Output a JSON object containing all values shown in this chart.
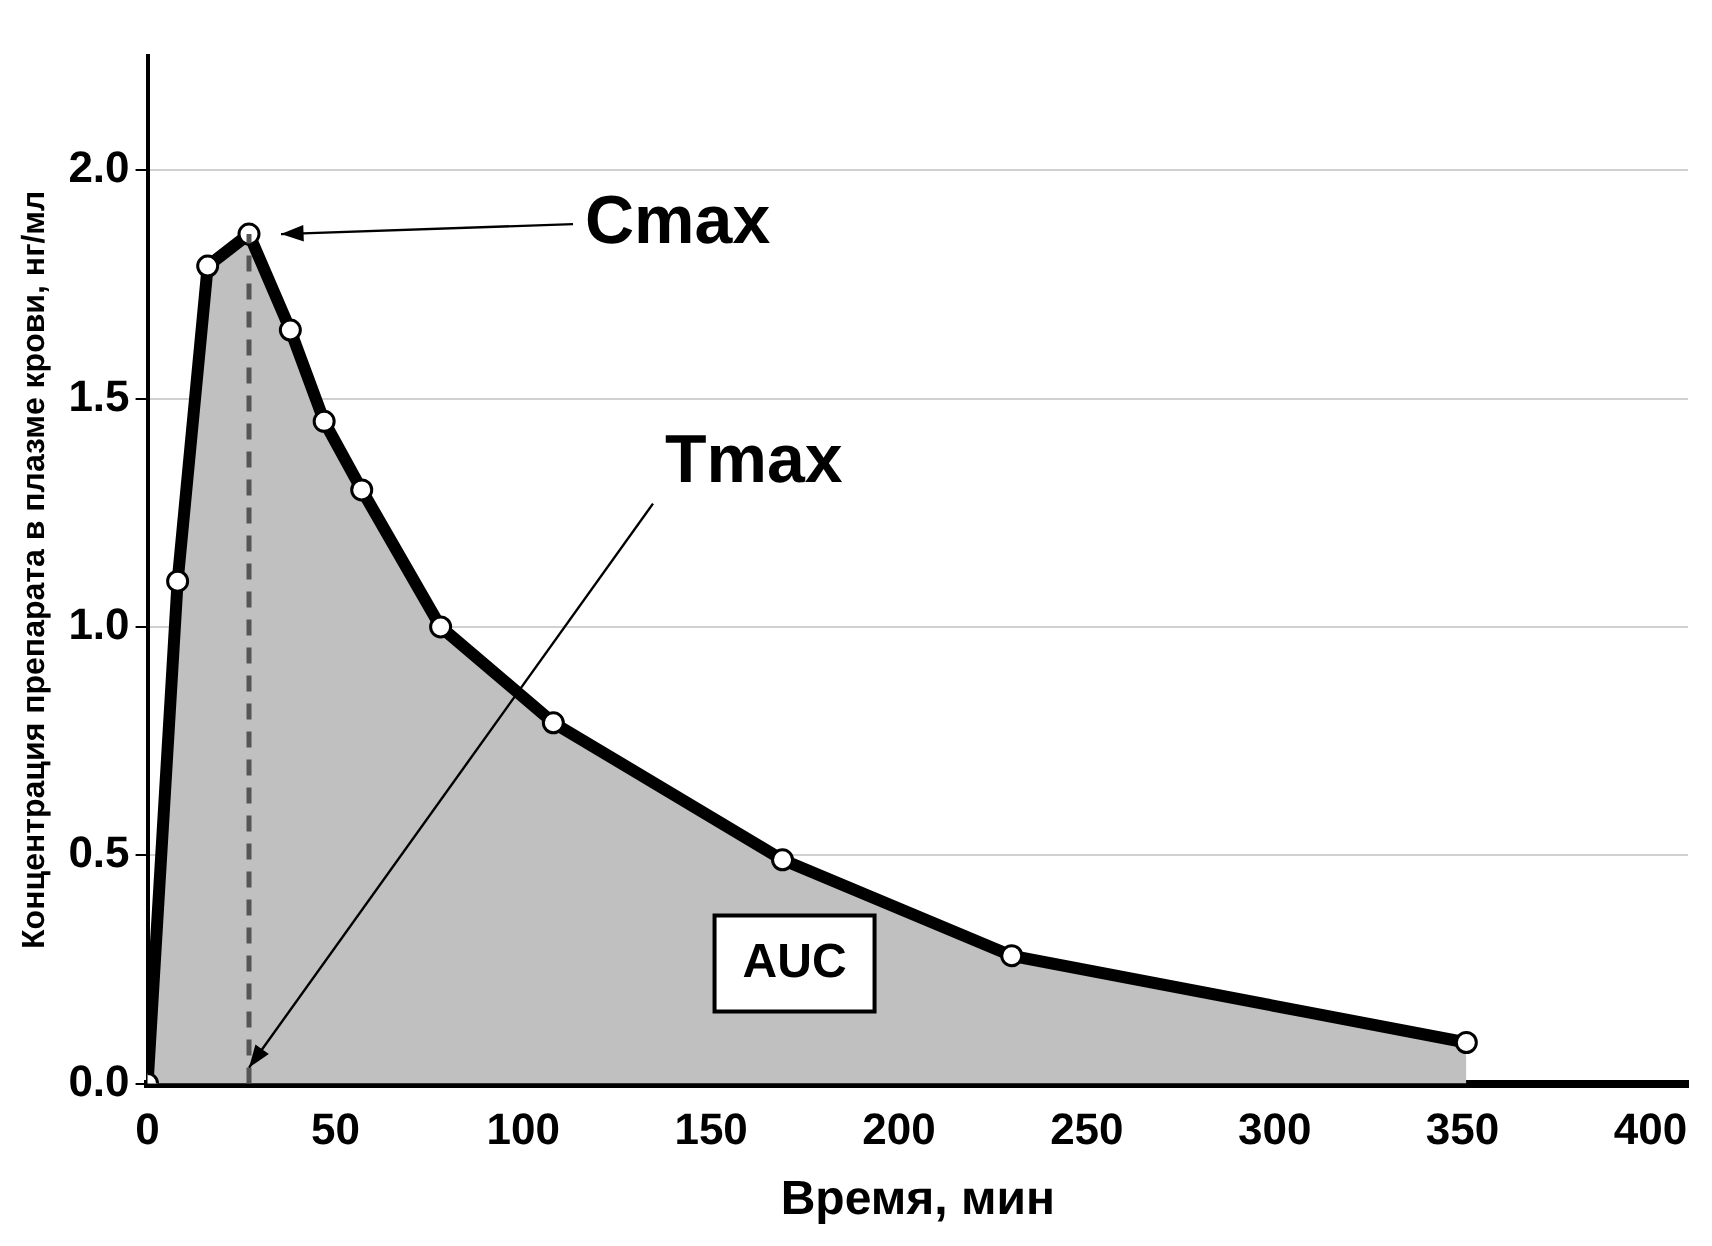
{
  "chart_data": {
    "type": "area",
    "xlabel": "Время, мин",
    "ylabel": "Концентрация препарата в плазме крови, нг/мл",
    "x": [
      0,
      8,
      16,
      27,
      38,
      47,
      57,
      78,
      108,
      169,
      230,
      351
    ],
    "series": [
      {
        "color": "#c0c0c0",
        "values": [
          0,
          1.1,
          1.79,
          1.86,
          1.65,
          1.45,
          1.3,
          1.0,
          0.79,
          0.49,
          0.28,
          0.09
        ]
      }
    ],
    "xlim": [
      0,
      410
    ],
    "xticks": [
      0,
      50,
      100,
      150,
      200,
      250,
      300,
      350,
      400
    ],
    "ylim": [
      0,
      2.25
    ],
    "yticks": [
      {
        "value": 0,
        "label": "0.0"
      },
      {
        "value": 0.5,
        "label": "0.5"
      },
      {
        "value": 1,
        "label": "1.0"
      },
      {
        "value": 1.5,
        "label": "1.5"
      },
      {
        "value": 2,
        "label": "2.0"
      }
    ],
    "grid": "y",
    "marker": "circle",
    "line_style": "solid",
    "ref_lines": [
      {
        "axis": "x",
        "value": 27,
        "line_style": "dashed",
        "color": "#555555"
      }
    ],
    "annotations": [
      "Cmax",
      "Tmax",
      "AUC"
    ]
  }
}
